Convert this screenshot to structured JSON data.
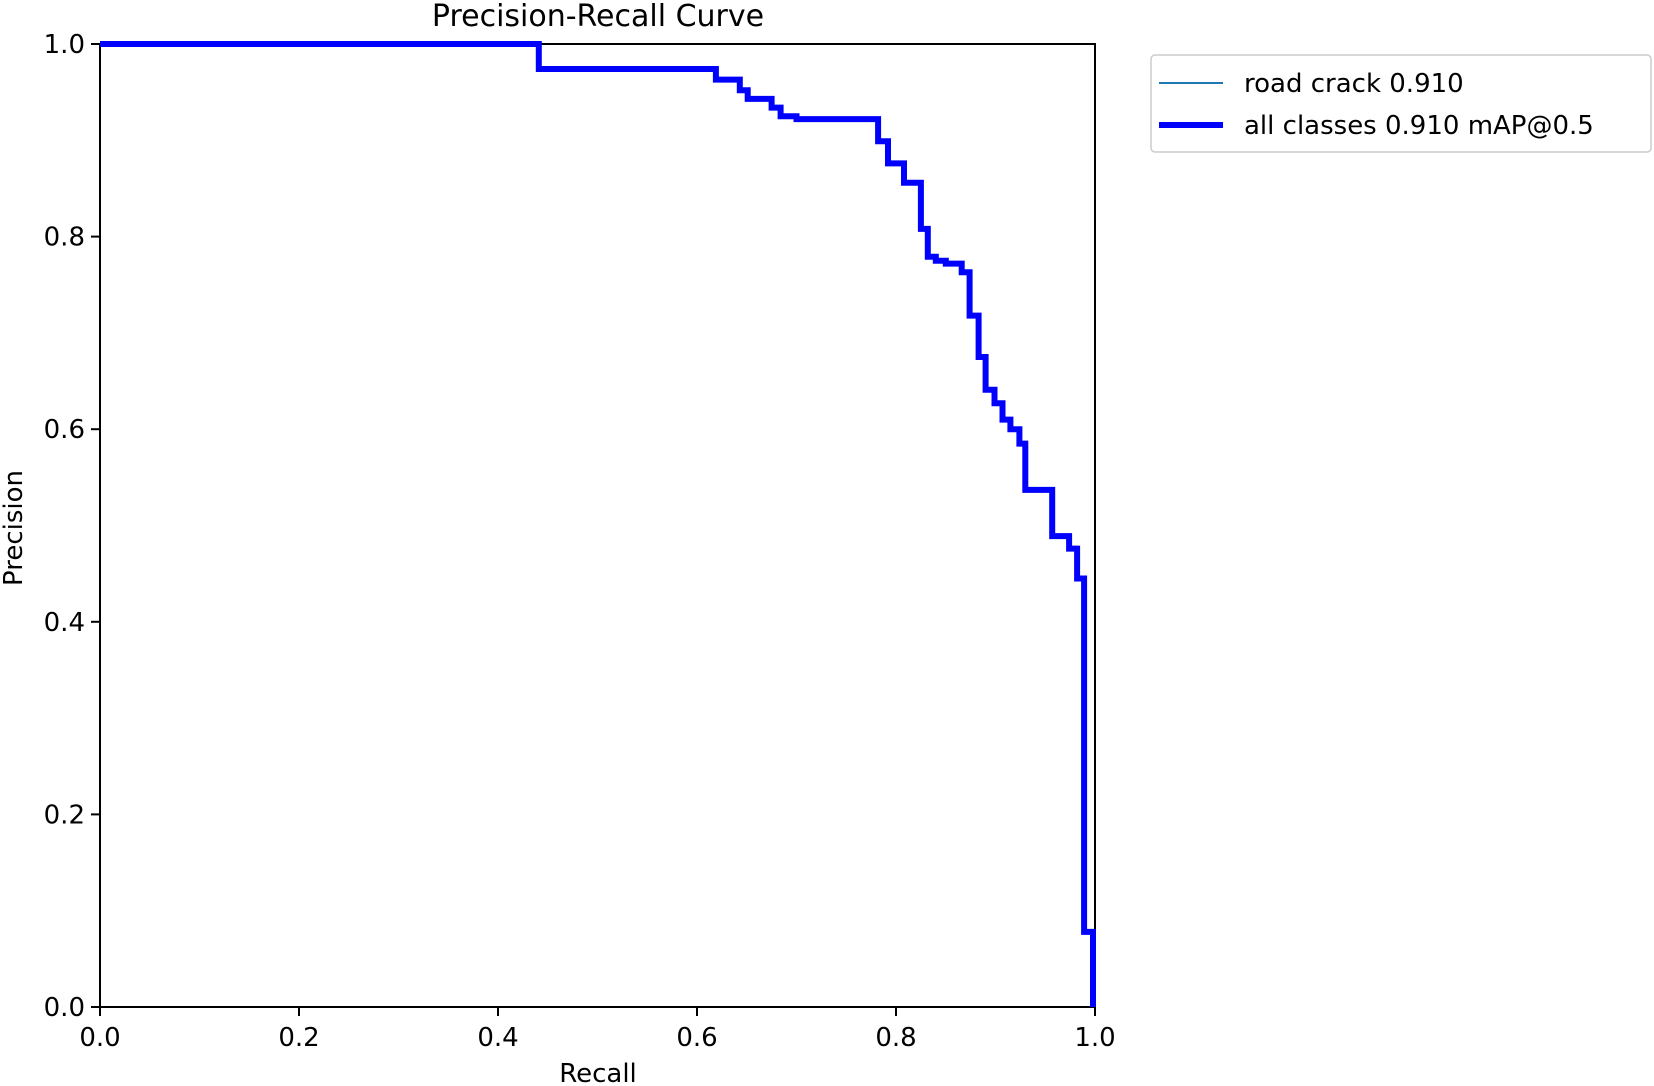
{
  "chart_data": {
    "type": "line",
    "title": "Precision-Recall Curve",
    "xlabel": "Recall",
    "ylabel": "Precision",
    "xlim": [
      0,
      1
    ],
    "ylim": [
      0,
      1
    ],
    "xticks": [
      "0.0",
      "0.2",
      "0.4",
      "0.6",
      "0.8",
      "1.0"
    ],
    "yticks": [
      "0.0",
      "0.2",
      "0.4",
      "0.6",
      "0.8",
      "1.0"
    ],
    "grid": false,
    "legend_position": "outside-top-right",
    "series": [
      {
        "name": "road crack 0.910",
        "color": "#1f77b4",
        "points": []
      },
      {
        "name": "all classes 0.910 mAP@0.5",
        "color": "#0000ff",
        "points": [
          [
            0.0,
            1.0
          ],
          [
            0.441,
            1.0
          ],
          [
            0.441,
            0.974
          ],
          [
            0.619,
            0.974
          ],
          [
            0.619,
            0.963
          ],
          [
            0.643,
            0.963
          ],
          [
            0.643,
            0.952
          ],
          [
            0.651,
            0.952
          ],
          [
            0.651,
            0.943
          ],
          [
            0.675,
            0.943
          ],
          [
            0.675,
            0.934
          ],
          [
            0.684,
            0.934
          ],
          [
            0.684,
            0.925
          ],
          [
            0.7,
            0.925
          ],
          [
            0.7,
            0.922
          ],
          [
            0.782,
            0.922
          ],
          [
            0.782,
            0.899
          ],
          [
            0.792,
            0.899
          ],
          [
            0.792,
            0.876
          ],
          [
            0.808,
            0.876
          ],
          [
            0.808,
            0.856
          ],
          [
            0.825,
            0.856
          ],
          [
            0.825,
            0.808
          ],
          [
            0.832,
            0.808
          ],
          [
            0.832,
            0.779
          ],
          [
            0.84,
            0.779
          ],
          [
            0.84,
            0.775
          ],
          [
            0.85,
            0.775
          ],
          [
            0.85,
            0.772
          ],
          [
            0.866,
            0.772
          ],
          [
            0.866,
            0.763
          ],
          [
            0.874,
            0.763
          ],
          [
            0.874,
            0.718
          ],
          [
            0.883,
            0.718
          ],
          [
            0.883,
            0.675
          ],
          [
            0.89,
            0.675
          ],
          [
            0.89,
            0.641
          ],
          [
            0.899,
            0.641
          ],
          [
            0.899,
            0.627
          ],
          [
            0.907,
            0.627
          ],
          [
            0.907,
            0.61
          ],
          [
            0.915,
            0.61
          ],
          [
            0.915,
            0.6
          ],
          [
            0.924,
            0.6
          ],
          [
            0.924,
            0.585
          ],
          [
            0.93,
            0.585
          ],
          [
            0.93,
            0.537
          ],
          [
            0.957,
            0.537
          ],
          [
            0.957,
            0.489
          ],
          [
            0.974,
            0.489
          ],
          [
            0.974,
            0.476
          ],
          [
            0.982,
            0.476
          ],
          [
            0.982,
            0.445
          ],
          [
            0.989,
            0.445
          ],
          [
            0.989,
            0.078
          ],
          [
            0.998,
            0.078
          ],
          [
            0.998,
            0.0
          ]
        ]
      }
    ]
  }
}
